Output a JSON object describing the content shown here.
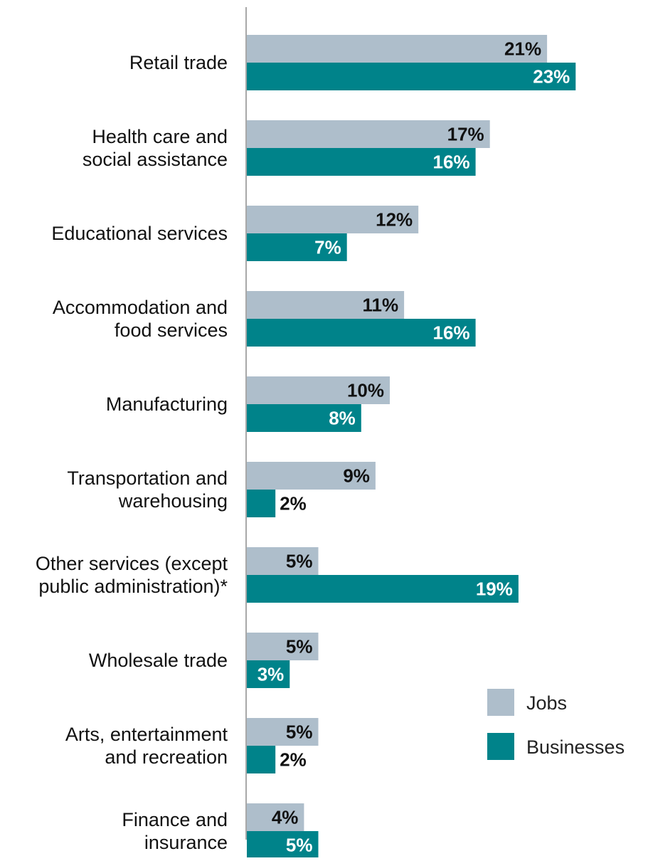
{
  "chart_data": {
    "type": "bar",
    "orientation": "horizontal",
    "categories": [
      "Retail trade",
      "Health care and social assistance",
      "Educational services",
      "Accommodation and food services",
      "Manufacturing",
      "Transportation and warehousing",
      "Other services (except public administration)*",
      "Wholesale trade",
      "Arts, entertainment and recreation",
      "Finance and insurance"
    ],
    "category_lines": [
      [
        "Retail trade"
      ],
      [
        "Health care and",
        "social assistance"
      ],
      [
        "Educational services"
      ],
      [
        "Accommodation and",
        "food services"
      ],
      [
        "Manufacturing"
      ],
      [
        "Transportation and",
        "warehousing"
      ],
      [
        "Other services (except",
        "public administration)*"
      ],
      [
        "Wholesale trade"
      ],
      [
        "Arts, entertainment",
        "and recreation"
      ],
      [
        "Finance and",
        "insurance"
      ]
    ],
    "series": [
      {
        "name": "Jobs",
        "color": "#aebecb",
        "values": [
          21,
          17,
          12,
          11,
          10,
          9,
          5,
          5,
          5,
          4
        ],
        "labels": [
          "21%",
          "17%",
          "12%",
          "11%",
          "10%",
          "9%",
          "5%",
          "5%",
          "5%",
          "4%"
        ]
      },
      {
        "name": "Businesses",
        "color": "#00838a",
        "values": [
          23,
          16,
          7,
          16,
          8,
          2,
          19,
          3,
          2,
          5
        ],
        "labels": [
          "23%",
          "16%",
          "7%",
          "16%",
          "8%",
          "2%",
          "19%",
          "3%",
          "2%",
          "5%"
        ]
      }
    ],
    "xlim": [
      0,
      28
    ],
    "value_unit": "%",
    "grid": false,
    "legend_position": "bottom-right",
    "colors": {
      "axis": "#8c8c8c",
      "label_dark": "#111111",
      "label_light": "#ffffff"
    }
  }
}
